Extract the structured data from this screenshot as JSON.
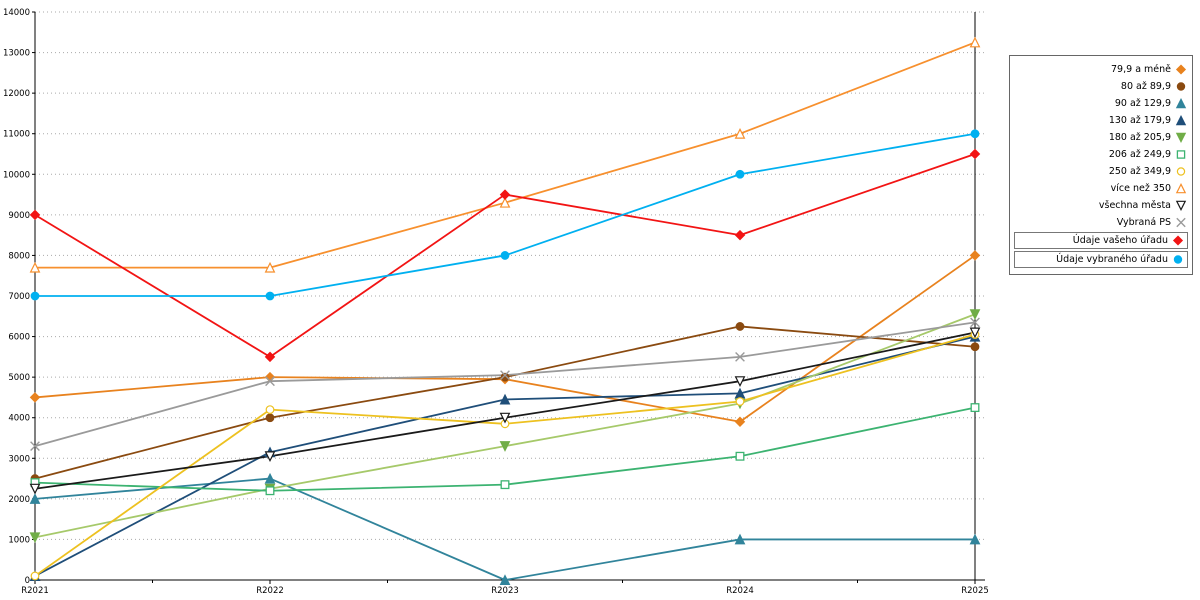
{
  "chart_data": {
    "type": "line",
    "title": "",
    "xlabel": "",
    "ylabel": "",
    "categories": [
      "R2021",
      "R2022",
      "R2023",
      "R2024",
      "R2025"
    ],
    "ylim": [
      0,
      14000
    ],
    "ytick_step": 1000,
    "grid": "horizontal-dotted",
    "legend_position": "right",
    "colors": {
      "axis": "#000000",
      "gridline": "#aaaaaa",
      "background": "#ffffff"
    },
    "series": [
      {
        "name": "79,9 a méně",
        "marker": "diamond",
        "filled": true,
        "color": "#e8821e",
        "boxed": false,
        "values": [
          4500,
          5000,
          4950,
          3900,
          8000
        ]
      },
      {
        "name": "80 až 89,9",
        "marker": "circle",
        "filled": true,
        "color": "#8a4a10",
        "boxed": false,
        "values": [
          2500,
          4000,
          5000,
          6250,
          5750
        ]
      },
      {
        "name": "90 až 129,9",
        "marker": "triangle-up",
        "filled": true,
        "color": "#31849b",
        "boxed": false,
        "values": [
          2000,
          2500,
          0,
          1000,
          1000
        ]
      },
      {
        "name": "130 až 179,9",
        "marker": "triangle-up",
        "filled": true,
        "color": "#1f4e79",
        "boxed": false,
        "values": [
          100,
          3150,
          4450,
          4600,
          6000
        ]
      },
      {
        "name": "180 až 205,9",
        "marker": "triangle-down",
        "filled": true,
        "color": "#70ad47",
        "line_color": "#a6c96a",
        "boxed": false,
        "values": [
          1050,
          2250,
          3300,
          4350,
          6550
        ]
      },
      {
        "name": "206 až 249,9",
        "marker": "square",
        "filled": false,
        "color": "#3cb371",
        "boxed": false,
        "values": [
          2400,
          2200,
          2350,
          3050,
          4250
        ]
      },
      {
        "name": "250 až 349,9",
        "marker": "circle",
        "filled": false,
        "color": "#edc120",
        "boxed": false,
        "values": [
          100,
          4200,
          3850,
          4400,
          6050
        ]
      },
      {
        "name": "více než 350",
        "marker": "triangle-up",
        "filled": false,
        "color": "#f7902e",
        "boxed": false,
        "values": [
          7700,
          7700,
          9300,
          11000,
          13250
        ]
      },
      {
        "name": "všechna města",
        "marker": "triangle-down",
        "filled": false,
        "color": "#1a1a1a",
        "boxed": false,
        "values": [
          2250,
          3050,
          4000,
          4900,
          6100
        ]
      },
      {
        "name": "Vybraná PS",
        "marker": "x",
        "filled": false,
        "color": "#9a9a9a",
        "boxed": false,
        "values": [
          3300,
          4900,
          5050,
          5500,
          6350
        ]
      },
      {
        "name": "Údaje vašeho úřadu",
        "marker": "diamond",
        "filled": true,
        "color": "#f21414",
        "boxed": true,
        "values": [
          9000,
          5500,
          9500,
          8500,
          10500
        ]
      },
      {
        "name": "Údaje vybraného úřadu",
        "marker": "circle",
        "filled": true,
        "color": "#00b0f0",
        "boxed": true,
        "values": [
          7000,
          7000,
          8000,
          10000,
          11000
        ]
      }
    ]
  }
}
